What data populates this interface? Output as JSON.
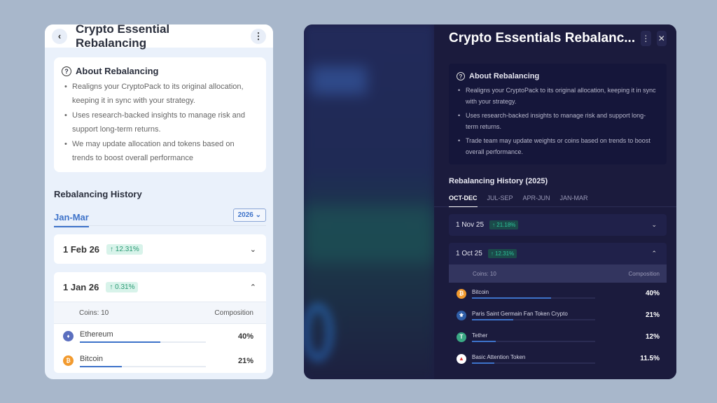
{
  "light": {
    "title": "Crypto Essential Rebalancing",
    "about_title": "About Rebalancing",
    "about_points": [
      "Realigns your CryptoPack to its original allocation, keeping it in sync with your strategy.",
      "Uses research-backed insights to manage risk and support long-term returns.",
      "We may update allocation and tokens based on trends to boost overall performance"
    ],
    "history_title": "Rebalancing History",
    "active_tab": "Jan-Mar",
    "year": "2026",
    "entries": [
      {
        "date": "1 Feb 26",
        "change": "↑ 12.31%",
        "expanded": false
      },
      {
        "date": "1 Jan 26",
        "change": "↑ 0.31%",
        "expanded": true
      }
    ],
    "coins_label": "Coins: 10",
    "composition_label": "Composition",
    "coins": [
      {
        "name": "Ethereum",
        "pct": "40%",
        "value": 40,
        "color": "#5b6fbf",
        "icon": "ethereum-icon",
        "glyph": "♦"
      },
      {
        "name": "Bitcoin",
        "pct": "21%",
        "value": 21,
        "color": "#f29a2e",
        "icon": "bitcoin-icon",
        "glyph": "₿"
      }
    ]
  },
  "dark": {
    "title": "Crypto Essentials Rebalanc...",
    "about_title": "About Rebalancing",
    "about_points": [
      "Realigns your CryptoPack to its original allocation, keeping it in sync with your strategy.",
      "Uses research-backed insights to manage risk and support long-term returns.",
      "Trade team may update weights or coins based on trends to boost overall performance."
    ],
    "history_title": "Rebalancing History (2025)",
    "tabs": [
      "OCT-DEC",
      "JUL-SEP",
      "APR-JUN",
      "JAN-MAR"
    ],
    "entries": [
      {
        "date": "1 Nov 25",
        "change": "↑ 21.18%",
        "expanded": false
      },
      {
        "date": "1 Oct 25",
        "change": "↑ 12.31%",
        "expanded": true
      }
    ],
    "coins_label": "Coins: 10",
    "composition_label": "Composition",
    "coins": [
      {
        "name": "Bitcoin",
        "pct": "40%",
        "value": 40,
        "color": "#f29a2e",
        "icon": "bitcoin-icon",
        "glyph": "₿"
      },
      {
        "name": "Paris Saint Germain Fan Token Crypto",
        "pct": "21%",
        "value": 21,
        "color": "#2f5ea8",
        "icon": "psg-icon",
        "glyph": "⚜"
      },
      {
        "name": "Tether",
        "pct": "12%",
        "value": 12,
        "color": "#3aa884",
        "icon": "tether-icon",
        "glyph": "T"
      },
      {
        "name": "Basic Attention Token",
        "pct": "11.5%",
        "value": 11.5,
        "color": "#ffffff",
        "icon": "bat-icon",
        "glyph": "▲"
      }
    ]
  },
  "accent": "#3d72c9"
}
